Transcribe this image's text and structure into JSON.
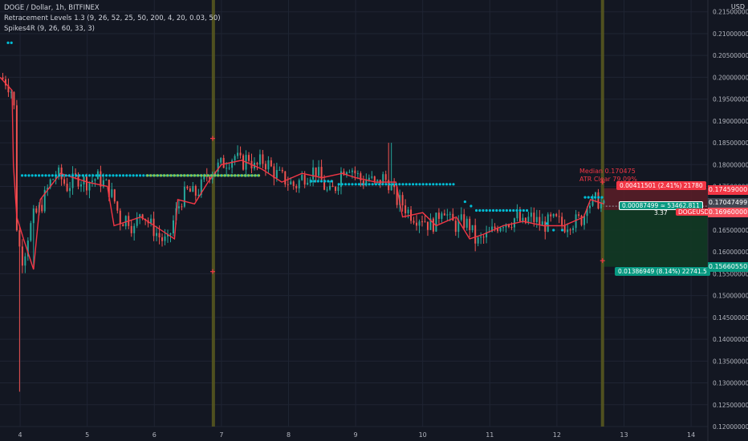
{
  "legend": {
    "symbol": "DOGE / Dollar, 1h, BITFINEX",
    "ind1": "Retracement Levels 1.3 (9, 26, 52, 25, 50, 200, 4, 20, 0.03, 50)",
    "ind2": "Spikes4R (9, 26, 60, 33, 3)"
  },
  "currency": "USD",
  "colors": {
    "background": "#131722",
    "grid": "#1f2433",
    "up": "#26a69a",
    "down": "#ef5350",
    "trail": "#f23645",
    "dots": "#00bcd4",
    "dots_green": "#8bc34a",
    "vline": "#5b5a1e",
    "loss_zone": "#5c1d27",
    "profit_zone": "#123a24"
  },
  "chart_data": {
    "type": "candlestick",
    "ylim": [
      0.12,
      0.2155
    ],
    "xlim": [
      3.7,
      14.25
    ],
    "x_ticks": [
      "4",
      "5",
      "6",
      "7",
      "8",
      "9",
      "10",
      "11",
      "12",
      "13",
      "14"
    ],
    "y_ticks": [
      "0.21500000",
      "0.21000000",
      "0.20500000",
      "0.20000000",
      "0.19500000",
      "0.19000000",
      "0.18500000",
      "0.18000000",
      "0.17500000",
      "0.17000000",
      "0.16500000",
      "0.16000000",
      "0.15500000",
      "0.15000000",
      "0.14500000",
      "0.14000000",
      "0.13500000",
      "0.13000000",
      "0.12500000",
      "0.12000000"
    ],
    "vertical_lines_x": [
      6.88,
      12.68
    ],
    "close_path": [
      [
        3.7,
        0.2
      ],
      [
        3.8,
        0.199
      ],
      [
        3.9,
        0.196
      ],
      [
        3.93,
        0.185
      ],
      [
        3.95,
        0.166
      ],
      [
        4.0,
        0.16
      ],
      [
        4.05,
        0.158
      ],
      [
        4.1,
        0.163
      ],
      [
        4.2,
        0.168
      ],
      [
        4.3,
        0.17
      ],
      [
        4.45,
        0.176
      ],
      [
        4.55,
        0.178
      ],
      [
        4.7,
        0.175
      ],
      [
        4.85,
        0.177
      ],
      [
        5.0,
        0.176
      ],
      [
        5.15,
        0.177
      ],
      [
        5.3,
        0.175
      ],
      [
        5.4,
        0.172
      ],
      [
        5.5,
        0.167
      ],
      [
        5.6,
        0.168
      ],
      [
        5.7,
        0.165
      ],
      [
        5.8,
        0.17
      ],
      [
        5.9,
        0.167
      ],
      [
        6.0,
        0.165
      ],
      [
        6.1,
        0.163
      ],
      [
        6.2,
        0.162
      ],
      [
        6.3,
        0.168
      ],
      [
        6.4,
        0.172
      ],
      [
        6.5,
        0.174
      ],
      [
        6.6,
        0.173
      ],
      [
        6.7,
        0.175
      ],
      [
        6.8,
        0.178
      ],
      [
        6.9,
        0.179
      ],
      [
        7.0,
        0.18
      ],
      [
        7.1,
        0.181
      ],
      [
        7.2,
        0.182
      ],
      [
        7.3,
        0.18
      ],
      [
        7.4,
        0.182
      ],
      [
        7.5,
        0.179
      ],
      [
        7.6,
        0.181
      ],
      [
        7.7,
        0.18
      ],
      [
        7.8,
        0.178
      ],
      [
        7.9,
        0.177
      ],
      [
        8.0,
        0.176
      ],
      [
        8.1,
        0.175
      ],
      [
        8.2,
        0.177
      ],
      [
        8.3,
        0.178
      ],
      [
        8.4,
        0.179
      ],
      [
        8.5,
        0.176
      ],
      [
        8.6,
        0.173
      ],
      [
        8.7,
        0.175
      ],
      [
        8.8,
        0.179
      ],
      [
        8.9,
        0.18
      ],
      [
        9.0,
        0.178
      ],
      [
        9.1,
        0.176
      ],
      [
        9.2,
        0.177
      ],
      [
        9.3,
        0.175
      ],
      [
        9.4,
        0.177
      ],
      [
        9.5,
        0.176
      ],
      [
        9.6,
        0.172
      ],
      [
        9.7,
        0.171
      ],
      [
        9.8,
        0.169
      ],
      [
        9.9,
        0.168
      ],
      [
        10.0,
        0.168
      ],
      [
        10.1,
        0.166
      ],
      [
        10.2,
        0.167
      ],
      [
        10.3,
        0.171
      ],
      [
        10.4,
        0.167
      ],
      [
        10.5,
        0.166
      ],
      [
        10.6,
        0.167
      ],
      [
        10.7,
        0.166
      ],
      [
        10.8,
        0.162
      ],
      [
        10.9,
        0.163
      ],
      [
        11.0,
        0.164
      ],
      [
        11.1,
        0.166
      ],
      [
        11.2,
        0.167
      ],
      [
        11.3,
        0.167
      ],
      [
        11.4,
        0.168
      ],
      [
        11.5,
        0.166
      ],
      [
        11.6,
        0.168
      ],
      [
        11.7,
        0.167
      ],
      [
        11.8,
        0.166
      ],
      [
        11.9,
        0.167
      ],
      [
        12.0,
        0.167
      ],
      [
        12.1,
        0.166
      ],
      [
        12.2,
        0.167
      ],
      [
        12.3,
        0.167
      ],
      [
        12.4,
        0.168
      ],
      [
        12.45,
        0.172
      ],
      [
        12.5,
        0.171
      ],
      [
        12.6,
        0.172
      ],
      [
        12.7,
        0.17
      ]
    ],
    "trailing_stop": [
      [
        3.7,
        0.2
      ],
      [
        3.88,
        0.197
      ],
      [
        3.9,
        0.18
      ],
      [
        3.95,
        0.168
      ],
      [
        4.05,
        0.163
      ],
      [
        4.2,
        0.156
      ],
      [
        4.3,
        0.172
      ],
      [
        4.6,
        0.178
      ],
      [
        5.0,
        0.176
      ],
      [
        5.3,
        0.175
      ],
      [
        5.4,
        0.166
      ],
      [
        5.8,
        0.168
      ],
      [
        6.3,
        0.163
      ],
      [
        6.35,
        0.172
      ],
      [
        6.6,
        0.171
      ],
      [
        6.8,
        0.176
      ],
      [
        7.0,
        0.18
      ],
      [
        7.3,
        0.181
      ],
      [
        7.6,
        0.179
      ],
      [
        7.9,
        0.176
      ],
      [
        8.2,
        0.178
      ],
      [
        8.5,
        0.177
      ],
      [
        8.8,
        0.178
      ],
      [
        9.0,
        0.177
      ],
      [
        9.3,
        0.176
      ],
      [
        9.6,
        0.176
      ],
      [
        9.7,
        0.168
      ],
      [
        10.0,
        0.169
      ],
      [
        10.2,
        0.166
      ],
      [
        10.5,
        0.168
      ],
      [
        10.7,
        0.163
      ],
      [
        10.9,
        0.164
      ],
      [
        11.2,
        0.166
      ],
      [
        11.5,
        0.167
      ],
      [
        11.8,
        0.166
      ],
      [
        12.1,
        0.166
      ],
      [
        12.4,
        0.168
      ],
      [
        12.5,
        0.172
      ],
      [
        12.7,
        0.171
      ]
    ],
    "dots_upper": [
      [
        3.82,
        0.2079
      ],
      [
        3.92,
        0.2079
      ]
    ],
    "dots_level1": [
      [
        4.03,
        0.1775
      ],
      [
        7.58,
        0.1775
      ]
    ],
    "dots_level2": [
      [
        8.34,
        0.1762
      ],
      [
        8.66,
        0.1762
      ]
    ],
    "dots_level3": [
      [
        8.75,
        0.1755
      ],
      [
        10.48,
        0.1755
      ]
    ],
    "dots_level4": [
      [
        10.8,
        0.1695
      ],
      [
        11.6,
        0.1695
      ]
    ],
    "dots_single": [
      [
        10.63,
        0.1715
      ],
      [
        10.72,
        0.1705
      ],
      [
        11.85,
        0.1665
      ],
      [
        11.95,
        0.165
      ],
      [
        12.08,
        0.165
      ]
    ],
    "dots_level5": [
      [
        12.42,
        0.1725
      ],
      [
        12.72,
        0.1725
      ]
    ],
    "markers": [
      [
        6.87,
        0.186
      ],
      [
        6.87,
        0.1555
      ],
      [
        12.68,
        0.176
      ],
      [
        12.68,
        0.158
      ]
    ],
    "position": {
      "x_start": 12.68,
      "x_end": 14.25,
      "stop": 0.17459,
      "entry": 0.1696,
      "target": 0.1566055,
      "current": 0.17047499
    },
    "labels": {
      "median": "Median 0.170475",
      "atr": "ATR Clear 79.09%",
      "stop_info": "0.00411501 (2.41%) 21780",
      "current_info": "0.00087499 ≈ 53462.811",
      "current_sub": "3.37",
      "target_info": "0.01386949 (8.14%) 22741.5",
      "stop_price": "0.17459000",
      "current_price": "0.17047499",
      "entry_price": "0.16960000",
      "target_price": "0.15660550",
      "symbol_tag": "DOGEUSD"
    }
  }
}
